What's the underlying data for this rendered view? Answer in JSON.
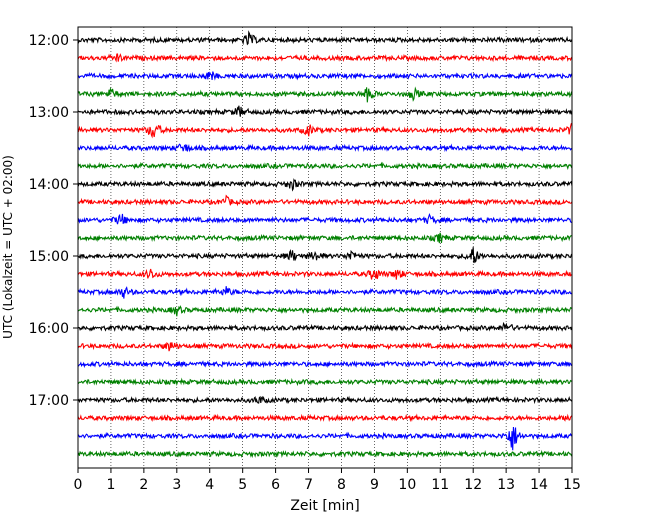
{
  "chart_data": {
    "type": "line",
    "title": "",
    "xlabel": "Zeit  [min]",
    "ylabel": "UTC (Lokalzeit = UTC + 02:00)",
    "xlim": [
      0,
      15
    ],
    "x_ticks": [
      0,
      1,
      2,
      3,
      4,
      5,
      6,
      7,
      8,
      9,
      10,
      11,
      12,
      13,
      14,
      15
    ],
    "x_tick_labels": [
      "0",
      "1",
      "2",
      "3",
      "4",
      "5",
      "6",
      "7",
      "8",
      "9",
      "10",
      "11",
      "12",
      "13",
      "14",
      "15"
    ],
    "y_tick_labels": [
      "12:00",
      "13:00",
      "14:00",
      "15:00",
      "16:00",
      "17:00"
    ],
    "vertical_grid": true,
    "series_colors": [
      "#000000",
      "#ff0000",
      "#0000ff",
      "#008000"
    ],
    "traces": [
      {
        "start": "12:00",
        "color": "#000000",
        "events": [
          {
            "x": 5.2,
            "amp": 0.4
          }
        ]
      },
      {
        "start": "12:15",
        "color": "#ff0000",
        "events": [
          {
            "x": 1.2,
            "amp": 0.2
          }
        ]
      },
      {
        "start": "12:30",
        "color": "#0000ff",
        "events": [
          {
            "x": 4.0,
            "amp": 0.3
          }
        ]
      },
      {
        "start": "12:45",
        "color": "#008000",
        "events": [
          {
            "x": 1.0,
            "amp": 0.3
          },
          {
            "x": 8.8,
            "amp": 0.4
          },
          {
            "x": 10.2,
            "amp": 0.3
          }
        ]
      },
      {
        "start": "13:00",
        "color": "#000000",
        "events": [
          {
            "x": 4.9,
            "amp": 0.3
          }
        ]
      },
      {
        "start": "13:15",
        "color": "#ff0000",
        "events": [
          {
            "x": 2.3,
            "amp": 0.55
          },
          {
            "x": 7.0,
            "amp": 0.3
          },
          {
            "x": 15.0,
            "amp": 0.3
          }
        ]
      },
      {
        "start": "13:30",
        "color": "#0000ff",
        "events": [
          {
            "x": 3.2,
            "amp": 0.3
          }
        ]
      },
      {
        "start": "13:45",
        "color": "#008000",
        "events": []
      },
      {
        "start": "14:00",
        "color": "#000000",
        "events": [
          {
            "x": 6.5,
            "amp": 0.3
          }
        ]
      },
      {
        "start": "14:15",
        "color": "#ff0000",
        "events": [
          {
            "x": 4.5,
            "amp": 0.25
          }
        ]
      },
      {
        "start": "14:30",
        "color": "#0000ff",
        "events": [
          {
            "x": 1.3,
            "amp": 0.35
          },
          {
            "x": 10.7,
            "amp": 0.25
          }
        ]
      },
      {
        "start": "14:45",
        "color": "#008000",
        "events": [
          {
            "x": 11.0,
            "amp": 0.25
          }
        ]
      },
      {
        "start": "15:00",
        "color": "#000000",
        "events": [
          {
            "x": 6.5,
            "amp": 0.3
          },
          {
            "x": 7.2,
            "amp": 0.3
          },
          {
            "x": 8.3,
            "amp": 0.3
          },
          {
            "x": 12.0,
            "amp": 0.55
          }
        ]
      },
      {
        "start": "15:15",
        "color": "#ff0000",
        "events": [
          {
            "x": 2.2,
            "amp": 0.3
          },
          {
            "x": 9.0,
            "amp": 0.4
          },
          {
            "x": 9.7,
            "amp": 0.3
          }
        ]
      },
      {
        "start": "15:30",
        "color": "#0000ff",
        "events": [
          {
            "x": 1.4,
            "amp": 0.3
          },
          {
            "x": 4.5,
            "amp": 0.25
          }
        ]
      },
      {
        "start": "15:45",
        "color": "#008000",
        "events": [
          {
            "x": 3.0,
            "amp": 0.25
          }
        ]
      },
      {
        "start": "16:00",
        "color": "#000000",
        "events": [
          {
            "x": 13.0,
            "amp": 0.3
          }
        ]
      },
      {
        "start": "16:15",
        "color": "#ff0000",
        "events": [
          {
            "x": 2.8,
            "amp": 0.3
          }
        ]
      },
      {
        "start": "16:30",
        "color": "#0000ff",
        "events": []
      },
      {
        "start": "16:45",
        "color": "#008000",
        "events": []
      },
      {
        "start": "17:00",
        "color": "#000000",
        "events": [
          {
            "x": 5.5,
            "amp": 0.2
          }
        ]
      },
      {
        "start": "17:15",
        "color": "#ff0000",
        "events": [
          {
            "x": 15.0,
            "amp": 0.3
          }
        ]
      },
      {
        "start": "17:30",
        "color": "#0000ff",
        "events": [
          {
            "x": 13.2,
            "amp": 0.9
          }
        ]
      },
      {
        "start": "17:45",
        "color": "#008000",
        "events": []
      }
    ]
  }
}
